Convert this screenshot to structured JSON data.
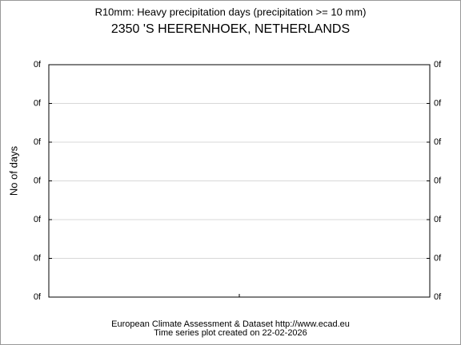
{
  "chart_data": {
    "type": "line",
    "title": "R10mm: Heavy precipitation days (precipitation >= 10 mm)",
    "subtitle": "2350 'S HEERENHOEK, NETHERLANDS",
    "y_label": "No of days",
    "footer": [
      "European Climate Assessment & Dataset  http://www.ecad.eu",
      "Time series plot created on 22-02-2026"
    ],
    "x": [],
    "series": [],
    "ylim": [
      0,
      6
    ],
    "yticks": [
      {
        "value": 0,
        "label": "0f"
      },
      {
        "value": 1,
        "label": "0f"
      },
      {
        "value": 2,
        "label": "0f"
      },
      {
        "value": 3,
        "label": "0f"
      },
      {
        "value": 4,
        "label": "0f"
      },
      {
        "value": 5,
        "label": "0f"
      },
      {
        "value": 6,
        "label": "0f"
      }
    ],
    "grid": true
  }
}
